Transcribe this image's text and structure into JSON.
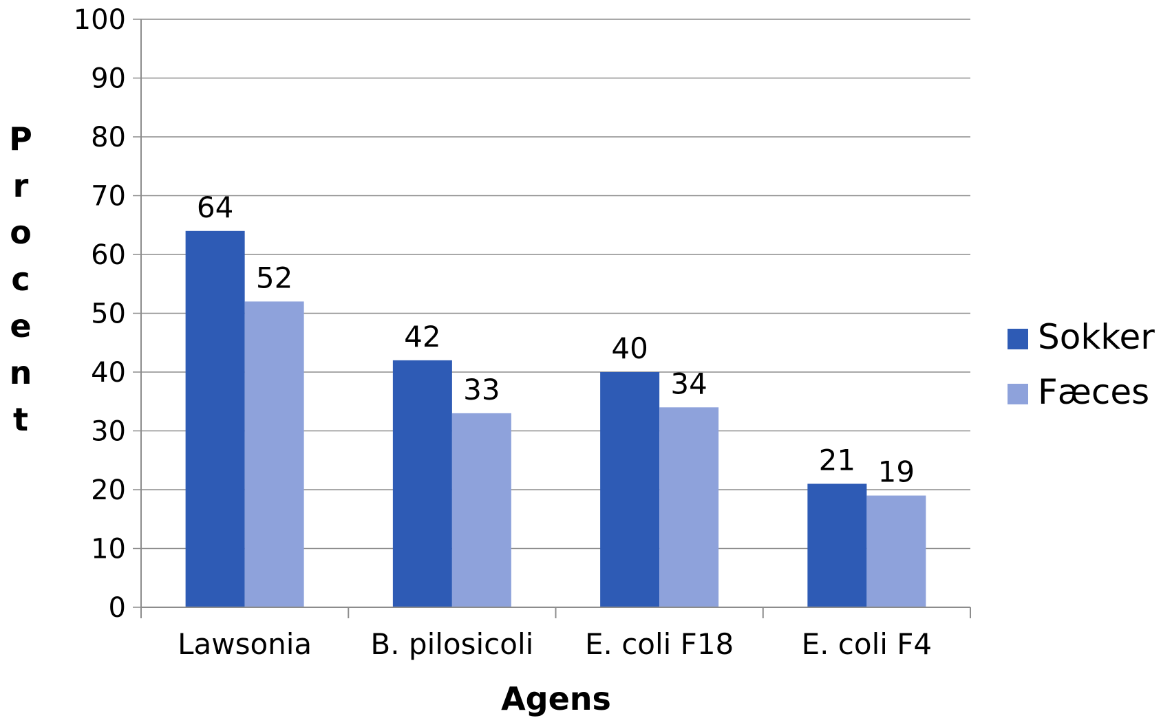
{
  "chart_data": {
    "type": "bar",
    "title": "",
    "xlabel": "Agens",
    "ylabel": "Procent",
    "categories": [
      "Lawsonia",
      "B. pilosicoli",
      "E. coli F18",
      "E. coli F4"
    ],
    "series": [
      {
        "name": "Sokker",
        "color": "#2e5bb5",
        "values": [
          64,
          42,
          40,
          21
        ]
      },
      {
        "name": "Fæces",
        "color": "#8ea2db",
        "values": [
          52,
          33,
          34,
          19
        ]
      }
    ],
    "ylim": [
      0,
      100
    ],
    "yticks": [
      0,
      10,
      20,
      30,
      40,
      50,
      60,
      70,
      80,
      90,
      100
    ],
    "grid": true,
    "legend_position": "right",
    "data_labels": true
  }
}
